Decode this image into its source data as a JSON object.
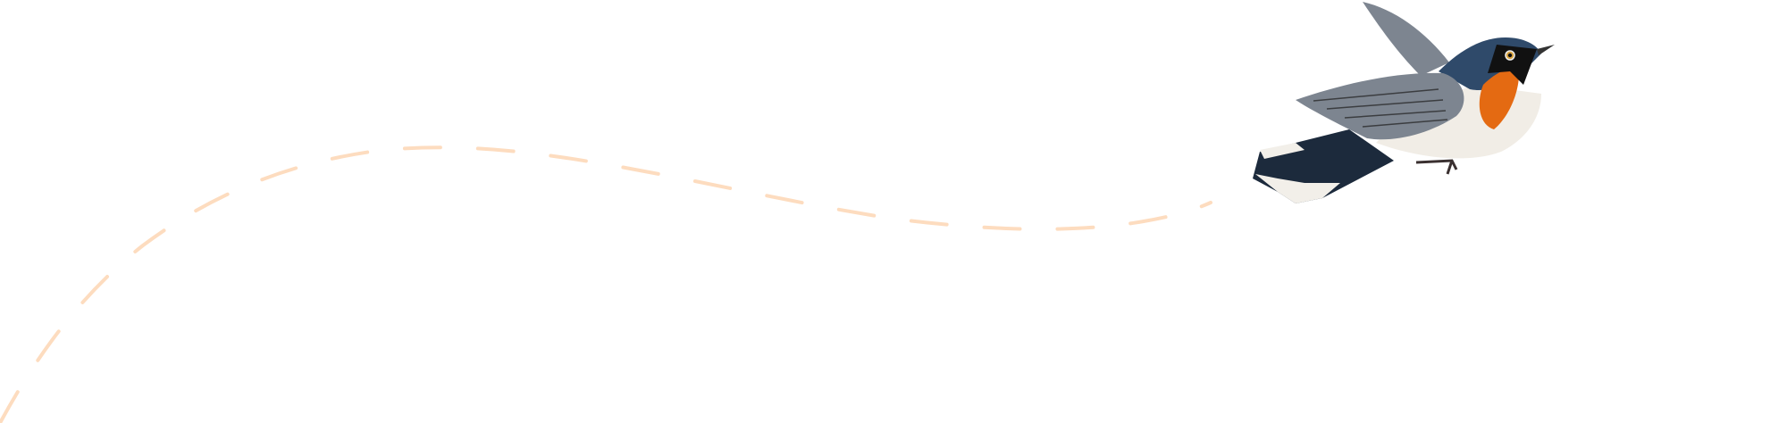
{
  "illustration": {
    "subject": "bird-in-flight",
    "colors": {
      "flight_path": "#fddcbf",
      "head_back": "#2f4a6a",
      "throat": "#e46a12",
      "belly": "#f1ede6",
      "wing": "#7d8590",
      "tail": "#1c2a3c",
      "tail_tip": "#f2efe9"
    }
  }
}
